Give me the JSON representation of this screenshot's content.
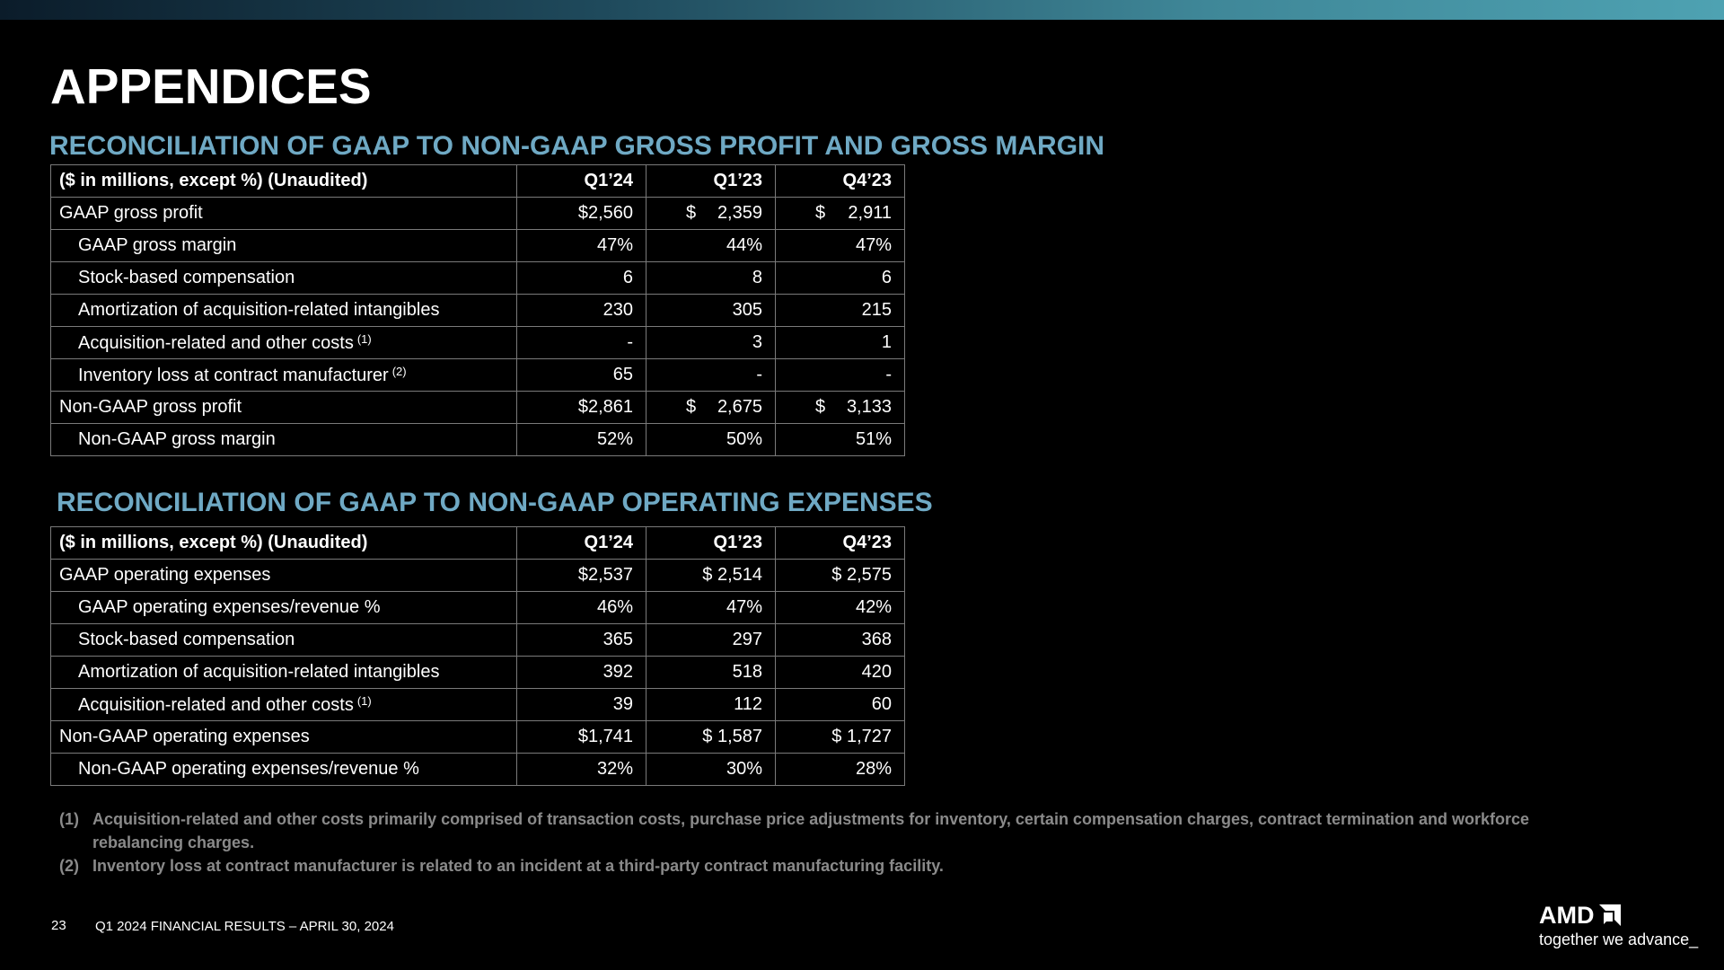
{
  "page": {
    "title": "APPENDICES",
    "page_number": "23",
    "footer_text": "Q1 2024 FINANCIAL RESULTS – APRIL 30, 2024"
  },
  "brand": {
    "logo_text": "AMD",
    "logo_icon": "amd-arrow-icon",
    "tagline": "together we advance_"
  },
  "colors": {
    "section_title": "#6fa9c4",
    "background": "#000000",
    "footnote": "#8a8a8a"
  },
  "gross_profit": {
    "section_title": "RECONCILIATION OF GAAP TO NON-GAAP GROSS PROFIT AND GROSS MARGIN",
    "header": {
      "label": "($ in millions, except %) (Unaudited)",
      "q1_24": "Q1’24",
      "q1_23": "Q1’23",
      "q4_23": "Q4’23"
    },
    "rows": [
      {
        "label": "GAAP gross profit",
        "fn": "",
        "q1_24": "$2,560",
        "q1_23_cur": "$",
        "q1_23": "2,359",
        "q4_23_cur": "$",
        "q4_23": "2,911"
      },
      {
        "label": "GAAP gross margin",
        "fn": "",
        "q1_24": "47%",
        "q1_23_cur": "",
        "q1_23": "44%",
        "q4_23_cur": "",
        "q4_23": "47%"
      },
      {
        "label": "Stock-based compensation",
        "fn": "",
        "q1_24": "6",
        "q1_23_cur": "",
        "q1_23": "8",
        "q4_23_cur": "",
        "q4_23": "6"
      },
      {
        "label": "Amortization of acquisition-related intangibles",
        "fn": "",
        "q1_24": "230",
        "q1_23_cur": "",
        "q1_23": "305",
        "q4_23_cur": "",
        "q4_23": "215"
      },
      {
        "label": "Acquisition-related and other costs",
        "fn": "(1)",
        "q1_24": "-",
        "q1_23_cur": "",
        "q1_23": "3",
        "q4_23_cur": "",
        "q4_23": "1"
      },
      {
        "label": "Inventory loss at contract manufacturer",
        "fn": "(2)",
        "q1_24": "65",
        "q1_23_cur": "",
        "q1_23": "-",
        "q4_23_cur": "",
        "q4_23": "-"
      },
      {
        "label": "Non-GAAP gross profit",
        "fn": "",
        "q1_24": "$2,861",
        "q1_23_cur": "$",
        "q1_23": "2,675",
        "q4_23_cur": "$",
        "q4_23": "3,133"
      },
      {
        "label": "Non-GAAP gross margin",
        "fn": "",
        "q1_24": "52%",
        "q1_23_cur": "",
        "q1_23": "50%",
        "q4_23_cur": "",
        "q4_23": "51%"
      }
    ]
  },
  "operating_expenses": {
    "section_title": "RECONCILIATION OF GAAP TO NON-GAAP OPERATING EXPENSES",
    "header": {
      "label": "($ in millions, except %) (Unaudited)",
      "q1_24": "Q1’24",
      "q1_23": "Q1’23",
      "q4_23": "Q4’23"
    },
    "rows": [
      {
        "label": "GAAP operating expenses",
        "fn": "",
        "q1_24": "$2,537",
        "q1_23": "$ 2,514",
        "q4_23": "$ 2,575"
      },
      {
        "label": "GAAP operating expenses/revenue %",
        "fn": "",
        "q1_24": "46%",
        "q1_23": "47%",
        "q4_23": "42%"
      },
      {
        "label": "Stock-based compensation",
        "fn": "",
        "q1_24": "365",
        "q1_23": "297",
        "q4_23": "368"
      },
      {
        "label": "Amortization of acquisition-related intangibles",
        "fn": "",
        "q1_24": "392",
        "q1_23": "518",
        "q4_23": "420"
      },
      {
        "label": "Acquisition-related and other costs",
        "fn": "(1)",
        "q1_24": "39",
        "q1_23": "112",
        "q4_23": "60"
      },
      {
        "label": "Non-GAAP operating expenses",
        "fn": "",
        "q1_24": "$1,741",
        "q1_23": "$ 1,587",
        "q4_23": "$ 1,727"
      },
      {
        "label": "Non-GAAP operating expenses/revenue %",
        "fn": "",
        "q1_24": "32%",
        "q1_23": "30%",
        "q4_23": "28%"
      }
    ]
  },
  "footnotes": [
    {
      "num": "(1)",
      "text": "Acquisition-related and other costs primarily comprised of transaction costs, purchase price adjustments for inventory, certain compensation charges, contract termination and workforce rebalancing charges."
    },
    {
      "num": "(2)",
      "text": "Inventory loss at contract manufacturer is related to an incident at a third-party contract manufacturing facility."
    }
  ]
}
